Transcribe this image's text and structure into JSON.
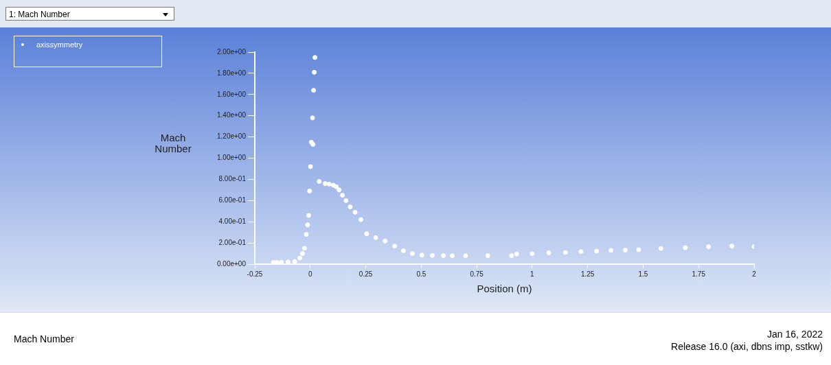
{
  "chart_data": {
    "type": "scatter",
    "title": "Mach Number",
    "xlabel": "Position (m)",
    "ylabel": "Mach Number",
    "annotations": [
      "1: Mach Number",
      "Jan 16, 2022",
      "Release 16.0 (axi, dbns imp, sstkw)"
    ],
    "legend": "top left",
    "marker": "circle",
    "grid": false,
    "xlim": [
      -0.25,
      2
    ],
    "xticks": [
      -0.25,
      0,
      0.25,
      0.5,
      0.75,
      1,
      1.25,
      1.5,
      1.75,
      2
    ],
    "ylim": [
      0,
      2
    ],
    "yticks": [
      {
        "value": 0,
        "label": "0.00e+00"
      },
      {
        "value": 0.2,
        "label": "2.00e-01"
      },
      {
        "value": 0.4,
        "label": "4.00e-01"
      },
      {
        "value": 0.6,
        "label": "6.00e-01"
      },
      {
        "value": 0.8,
        "label": "8.00e-01"
      },
      {
        "value": 1,
        "label": "1.00e+00"
      },
      {
        "value": 1.2,
        "label": "1.20e+00"
      },
      {
        "value": 1.4,
        "label": "1.40e+00"
      },
      {
        "value": 1.6,
        "label": "1.60e+00"
      },
      {
        "value": 1.8,
        "label": "1.80e+00"
      },
      {
        "value": 2,
        "label": "2.00e+00"
      }
    ],
    "series": [
      {
        "name": "axissymmetry",
        "color": "#ffffff",
        "x": [
          -0.166,
          -0.15,
          -0.13,
          -0.1,
          -0.07,
          -0.047,
          -0.035,
          -0.026,
          -0.018,
          -0.012,
          -0.007,
          -0.003,
          0.001,
          0.005,
          0.01,
          0.012,
          0.015,
          0.018,
          0.021,
          0.04,
          0.067,
          0.085,
          0.104,
          0.117,
          0.13,
          0.145,
          0.161,
          0.18,
          0.202,
          0.228,
          0.254,
          0.295,
          0.337,
          0.38,
          0.42,
          0.46,
          0.503,
          0.55,
          0.6,
          0.64,
          0.7,
          0.8,
          0.907,
          0.93,
          1.0,
          1.075,
          1.15,
          1.22,
          1.29,
          1.355,
          1.42,
          1.48,
          1.58,
          1.69,
          1.795,
          1.9,
          2.0
        ],
        "values": [
          0.016,
          0.016,
          0.018,
          0.02,
          0.025,
          0.058,
          0.1,
          0.15,
          0.28,
          0.37,
          0.46,
          0.69,
          0.92,
          1.15,
          1.38,
          1.13,
          1.64,
          1.81,
          1.95,
          0.78,
          0.76,
          0.755,
          0.745,
          0.73,
          0.7,
          0.65,
          0.6,
          0.54,
          0.49,
          0.42,
          0.287,
          0.25,
          0.218,
          0.17,
          0.126,
          0.1,
          0.085,
          0.082,
          0.08,
          0.08,
          0.08,
          0.08,
          0.08,
          0.096,
          0.098,
          0.107,
          0.11,
          0.118,
          0.122,
          0.13,
          0.132,
          0.136,
          0.148,
          0.155,
          0.163,
          0.17,
          0.165
        ]
      }
    ]
  }
}
